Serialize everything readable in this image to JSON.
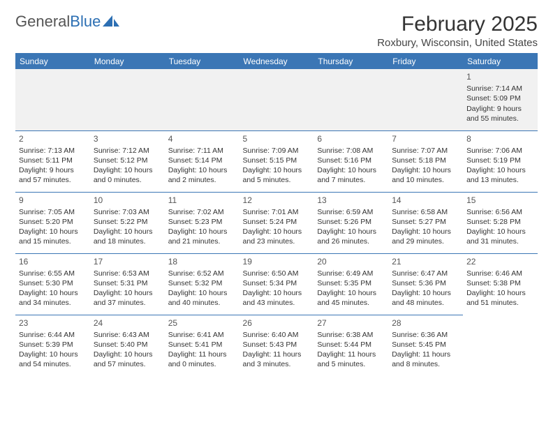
{
  "logo": {
    "text1": "General",
    "text2": "Blue"
  },
  "title": "February 2025",
  "location": "Roxbury, Wisconsin, United States",
  "colors": {
    "header_bg": "#3b76b5",
    "header_text": "#ffffff",
    "week0_bg": "#f1f1f1",
    "divider": "#3b76b5",
    "logo_gray": "#555555",
    "logo_blue": "#2c6fb3"
  },
  "font": {
    "family": "Arial",
    "body_size": 10.5,
    "title_size": 30,
    "header_size": 12,
    "daynum_size": 12
  },
  "columns": [
    "Sunday",
    "Monday",
    "Tuesday",
    "Wednesday",
    "Thursday",
    "Friday",
    "Saturday"
  ],
  "weeks": [
    [
      null,
      null,
      null,
      null,
      null,
      null,
      {
        "n": "1",
        "sunrise": "Sunrise: 7:14 AM",
        "sunset": "Sunset: 5:09 PM",
        "day1": "Daylight: 9 hours",
        "day2": "and 55 minutes."
      }
    ],
    [
      {
        "n": "2",
        "sunrise": "Sunrise: 7:13 AM",
        "sunset": "Sunset: 5:11 PM",
        "day1": "Daylight: 9 hours",
        "day2": "and 57 minutes."
      },
      {
        "n": "3",
        "sunrise": "Sunrise: 7:12 AM",
        "sunset": "Sunset: 5:12 PM",
        "day1": "Daylight: 10 hours",
        "day2": "and 0 minutes."
      },
      {
        "n": "4",
        "sunrise": "Sunrise: 7:11 AM",
        "sunset": "Sunset: 5:14 PM",
        "day1": "Daylight: 10 hours",
        "day2": "and 2 minutes."
      },
      {
        "n": "5",
        "sunrise": "Sunrise: 7:09 AM",
        "sunset": "Sunset: 5:15 PM",
        "day1": "Daylight: 10 hours",
        "day2": "and 5 minutes."
      },
      {
        "n": "6",
        "sunrise": "Sunrise: 7:08 AM",
        "sunset": "Sunset: 5:16 PM",
        "day1": "Daylight: 10 hours",
        "day2": "and 7 minutes."
      },
      {
        "n": "7",
        "sunrise": "Sunrise: 7:07 AM",
        "sunset": "Sunset: 5:18 PM",
        "day1": "Daylight: 10 hours",
        "day2": "and 10 minutes."
      },
      {
        "n": "8",
        "sunrise": "Sunrise: 7:06 AM",
        "sunset": "Sunset: 5:19 PM",
        "day1": "Daylight: 10 hours",
        "day2": "and 13 minutes."
      }
    ],
    [
      {
        "n": "9",
        "sunrise": "Sunrise: 7:05 AM",
        "sunset": "Sunset: 5:20 PM",
        "day1": "Daylight: 10 hours",
        "day2": "and 15 minutes."
      },
      {
        "n": "10",
        "sunrise": "Sunrise: 7:03 AM",
        "sunset": "Sunset: 5:22 PM",
        "day1": "Daylight: 10 hours",
        "day2": "and 18 minutes."
      },
      {
        "n": "11",
        "sunrise": "Sunrise: 7:02 AM",
        "sunset": "Sunset: 5:23 PM",
        "day1": "Daylight: 10 hours",
        "day2": "and 21 minutes."
      },
      {
        "n": "12",
        "sunrise": "Sunrise: 7:01 AM",
        "sunset": "Sunset: 5:24 PM",
        "day1": "Daylight: 10 hours",
        "day2": "and 23 minutes."
      },
      {
        "n": "13",
        "sunrise": "Sunrise: 6:59 AM",
        "sunset": "Sunset: 5:26 PM",
        "day1": "Daylight: 10 hours",
        "day2": "and 26 minutes."
      },
      {
        "n": "14",
        "sunrise": "Sunrise: 6:58 AM",
        "sunset": "Sunset: 5:27 PM",
        "day1": "Daylight: 10 hours",
        "day2": "and 29 minutes."
      },
      {
        "n": "15",
        "sunrise": "Sunrise: 6:56 AM",
        "sunset": "Sunset: 5:28 PM",
        "day1": "Daylight: 10 hours",
        "day2": "and 31 minutes."
      }
    ],
    [
      {
        "n": "16",
        "sunrise": "Sunrise: 6:55 AM",
        "sunset": "Sunset: 5:30 PM",
        "day1": "Daylight: 10 hours",
        "day2": "and 34 minutes."
      },
      {
        "n": "17",
        "sunrise": "Sunrise: 6:53 AM",
        "sunset": "Sunset: 5:31 PM",
        "day1": "Daylight: 10 hours",
        "day2": "and 37 minutes."
      },
      {
        "n": "18",
        "sunrise": "Sunrise: 6:52 AM",
        "sunset": "Sunset: 5:32 PM",
        "day1": "Daylight: 10 hours",
        "day2": "and 40 minutes."
      },
      {
        "n": "19",
        "sunrise": "Sunrise: 6:50 AM",
        "sunset": "Sunset: 5:34 PM",
        "day1": "Daylight: 10 hours",
        "day2": "and 43 minutes."
      },
      {
        "n": "20",
        "sunrise": "Sunrise: 6:49 AM",
        "sunset": "Sunset: 5:35 PM",
        "day1": "Daylight: 10 hours",
        "day2": "and 45 minutes."
      },
      {
        "n": "21",
        "sunrise": "Sunrise: 6:47 AM",
        "sunset": "Sunset: 5:36 PM",
        "day1": "Daylight: 10 hours",
        "day2": "and 48 minutes."
      },
      {
        "n": "22",
        "sunrise": "Sunrise: 6:46 AM",
        "sunset": "Sunset: 5:38 PM",
        "day1": "Daylight: 10 hours",
        "day2": "and 51 minutes."
      }
    ],
    [
      {
        "n": "23",
        "sunrise": "Sunrise: 6:44 AM",
        "sunset": "Sunset: 5:39 PM",
        "day1": "Daylight: 10 hours",
        "day2": "and 54 minutes."
      },
      {
        "n": "24",
        "sunrise": "Sunrise: 6:43 AM",
        "sunset": "Sunset: 5:40 PM",
        "day1": "Daylight: 10 hours",
        "day2": "and 57 minutes."
      },
      {
        "n": "25",
        "sunrise": "Sunrise: 6:41 AM",
        "sunset": "Sunset: 5:41 PM",
        "day1": "Daylight: 11 hours",
        "day2": "and 0 minutes."
      },
      {
        "n": "26",
        "sunrise": "Sunrise: 6:40 AM",
        "sunset": "Sunset: 5:43 PM",
        "day1": "Daylight: 11 hours",
        "day2": "and 3 minutes."
      },
      {
        "n": "27",
        "sunrise": "Sunrise: 6:38 AM",
        "sunset": "Sunset: 5:44 PM",
        "day1": "Daylight: 11 hours",
        "day2": "and 5 minutes."
      },
      {
        "n": "28",
        "sunrise": "Sunrise: 6:36 AM",
        "sunset": "Sunset: 5:45 PM",
        "day1": "Daylight: 11 hours",
        "day2": "and 8 minutes."
      },
      null
    ]
  ]
}
